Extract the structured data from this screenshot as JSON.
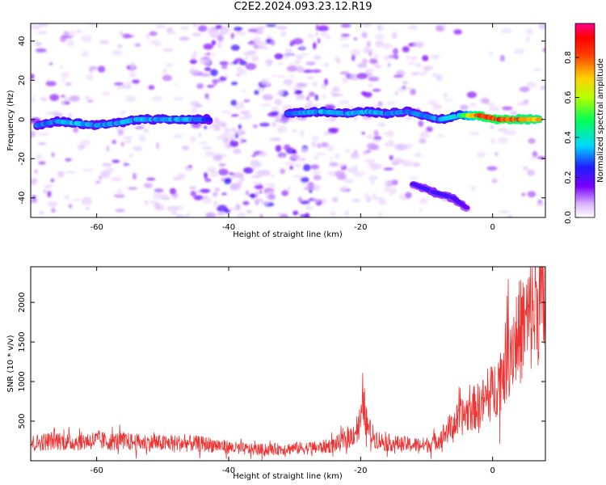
{
  "title": "C2E2.2024.093.23.12.R19",
  "chart_data": [
    {
      "type": "heatmap",
      "xlabel": "Height of straight line (km)",
      "ylabel": "Frequency (Hz)",
      "xlim": [
        -70,
        8
      ],
      "ylim": [
        -50,
        49
      ],
      "xticks": [
        -60,
        -40,
        -20,
        0
      ],
      "yticks": [
        -40,
        -20,
        0,
        20,
        40
      ],
      "colorbar": {
        "label": "Normalized spectral amplitude",
        "range": [
          0,
          0.97
        ],
        "ticks": [
          0.0,
          0.2,
          0.4,
          0.6,
          0.8
        ]
      },
      "main_trace": [
        {
          "x": -69,
          "freq": -3,
          "amp": 0.32
        },
        {
          "x": -66,
          "freq": -1,
          "amp": 0.36
        },
        {
          "x": -63,
          "freq": -2,
          "amp": 0.38
        },
        {
          "x": -60,
          "freq": -3,
          "amp": 0.34
        },
        {
          "x": -57,
          "freq": -2,
          "amp": 0.36
        },
        {
          "x": -54,
          "freq": 0,
          "amp": 0.38
        },
        {
          "x": -51,
          "freq": 0,
          "amp": 0.35
        },
        {
          "x": -48,
          "freq": 0,
          "amp": 0.38
        },
        {
          "x": -45,
          "freq": 0,
          "amp": 0.36
        },
        {
          "x": -43,
          "freq": 0,
          "amp": 0.28
        },
        {
          "x": -31,
          "freq": 3,
          "amp": 0.33
        },
        {
          "x": -26,
          "freq": 4,
          "amp": 0.38
        },
        {
          "x": -22,
          "freq": 3,
          "amp": 0.36
        },
        {
          "x": -19,
          "freq": 4,
          "amp": 0.37
        },
        {
          "x": -16,
          "freq": 3,
          "amp": 0.36
        },
        {
          "x": -13,
          "freq": 4,
          "amp": 0.32
        },
        {
          "x": -8,
          "freq": 0,
          "amp": 0.36
        },
        {
          "x": -5,
          "freq": 2,
          "amp": 0.45
        },
        {
          "x": -2,
          "freq": 2,
          "amp": 0.9
        },
        {
          "x": 1,
          "freq": 0,
          "amp": 0.92
        },
        {
          "x": 4,
          "freq": 0,
          "amp": 0.88
        },
        {
          "x": 7,
          "freq": 0,
          "amp": 0.82
        }
      ],
      "secondary_trace": [
        {
          "x": -12,
          "freq": -33,
          "amp": 0.22
        },
        {
          "x": -9,
          "freq": -37,
          "amp": 0.25
        },
        {
          "x": -6,
          "freq": -40,
          "amp": 0.24
        },
        {
          "x": -4,
          "freq": -45,
          "amp": 0.2
        }
      ]
    },
    {
      "type": "line",
      "xlabel": "Height of straight line (km)",
      "ylabel": "SNR (10 * v/v)",
      "xlim": [
        -70,
        8
      ],
      "ylim": [
        0,
        2450
      ],
      "xticks": [
        -60,
        -40,
        -20,
        0
      ],
      "yticks": [
        500,
        1000,
        1500,
        2000
      ],
      "series": [
        {
          "color": "#ee3333",
          "x": [
            -70,
            -68,
            -66,
            -64,
            -62,
            -60,
            -58,
            -56,
            -54,
            -52,
            -50,
            -48,
            -46,
            -44,
            -42,
            -40,
            -38,
            -36,
            -34,
            -32,
            -30,
            -28,
            -26,
            -24,
            -22,
            -21,
            -20,
            -19.5,
            -19,
            -18,
            -17,
            -16,
            -14,
            -12,
            -10,
            -9,
            -8,
            -7,
            -6,
            -5,
            -4,
            -3,
            -2,
            -1,
            0,
            1,
            2,
            3,
            4,
            5,
            6,
            7,
            8
          ],
          "y": [
            220,
            240,
            260,
            230,
            250,
            260,
            240,
            250,
            230,
            230,
            220,
            220,
            220,
            210,
            200,
            170,
            150,
            140,
            140,
            150,
            160,
            160,
            170,
            200,
            270,
            350,
            500,
            700,
            420,
            300,
            250,
            230,
            210,
            200,
            200,
            230,
            280,
            370,
            450,
            530,
            600,
            660,
            700,
            770,
            860,
            1020,
            1250,
            1500,
            1620,
            1720,
            1860,
            2030,
            1960
          ]
        }
      ]
    }
  ]
}
